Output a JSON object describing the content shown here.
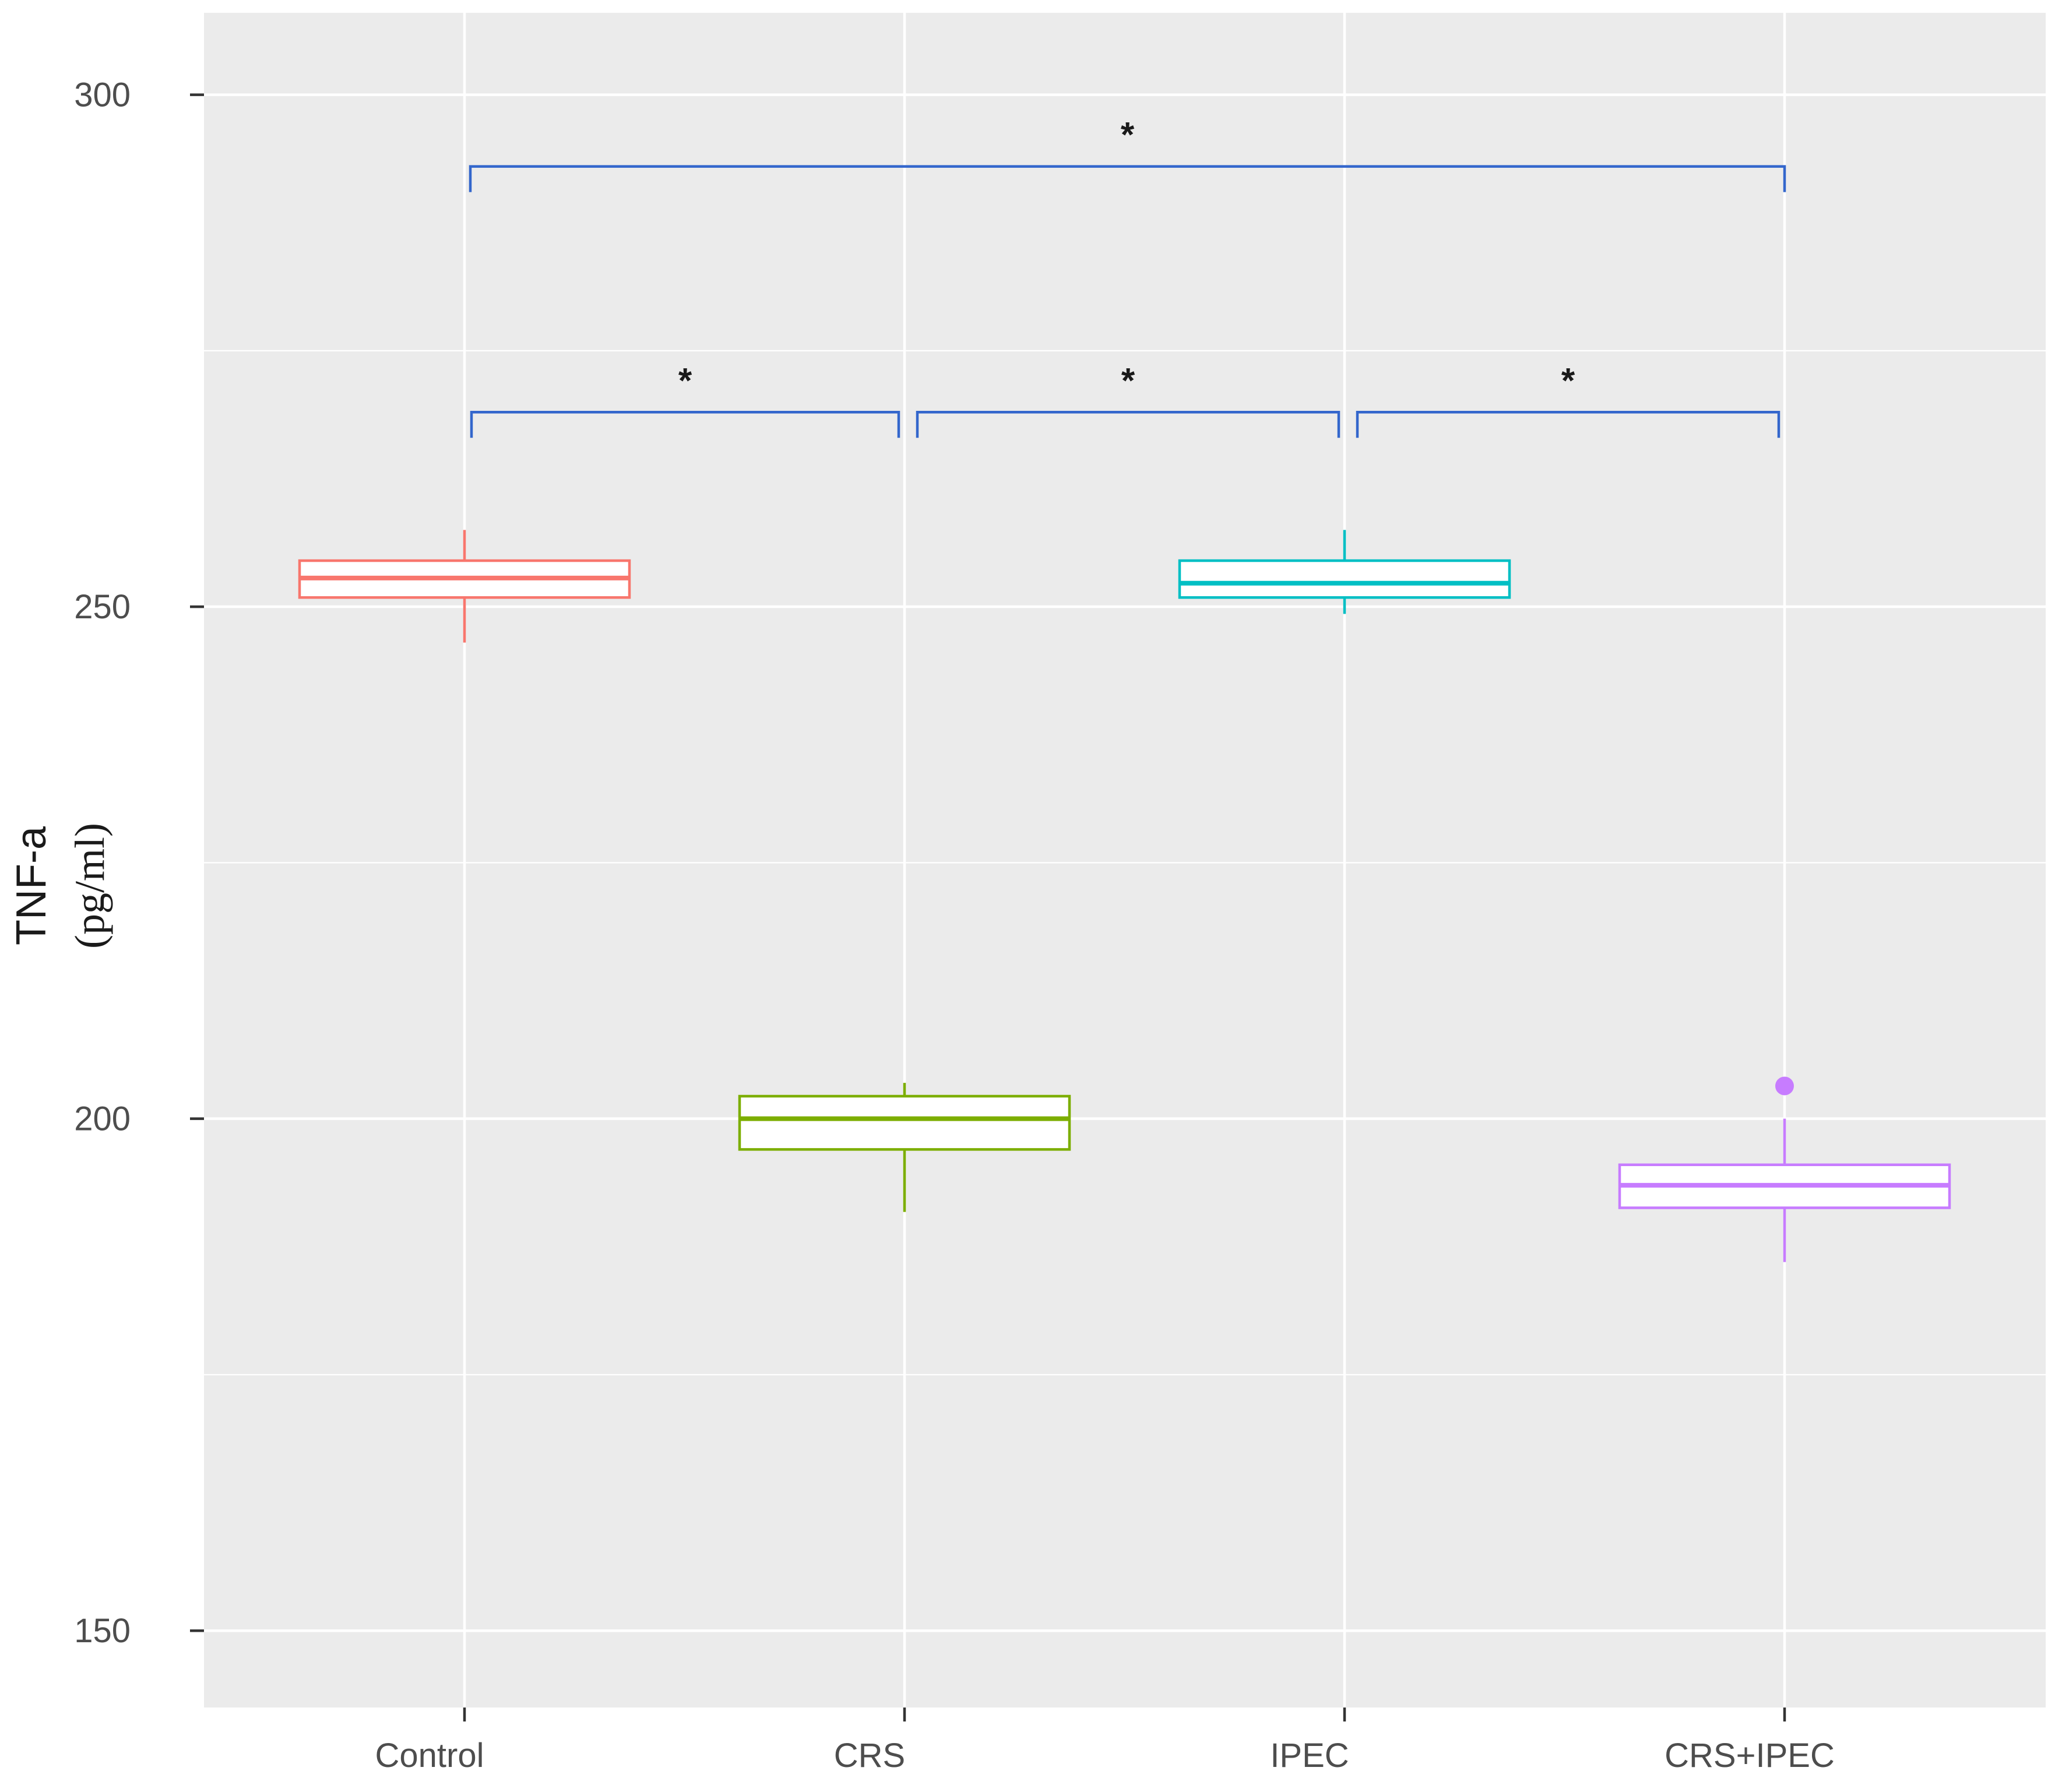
{
  "chart_data": {
    "type": "box",
    "ylabel": "TNF-a",
    "ylabel_unit": "(pg/ml)",
    "ylim": [
      142.5,
      308
    ],
    "y_ticks": [
      150,
      200,
      250,
      300
    ],
    "y_tick_labels": [
      "150",
      "200",
      "250",
      "300"
    ],
    "y_minor_ticks": [
      175,
      225,
      275
    ],
    "categories": [
      "Control",
      "CRS",
      "IPEC",
      "CRS+IPEC"
    ],
    "series": [
      {
        "category": "Control",
        "color": "#F8766D",
        "whisker_low": 246.5,
        "q1": 250.9,
        "median": 252.8,
        "q3": 254.5,
        "whisker_high": 257.5,
        "outliers": []
      },
      {
        "category": "CRS",
        "color": "#7CAE00",
        "whisker_low": 190.9,
        "q1": 197.0,
        "median": 200.0,
        "q3": 202.2,
        "whisker_high": 203.5,
        "outliers": []
      },
      {
        "category": "IPEC",
        "color": "#00BFC4",
        "whisker_low": 249.3,
        "q1": 250.9,
        "median": 252.3,
        "q3": 254.5,
        "whisker_high": 257.5,
        "outliers": []
      },
      {
        "category": "CRS+IPEC",
        "color": "#C77CFF",
        "whisker_low": 186.0,
        "q1": 191.3,
        "median": 193.5,
        "q3": 195.5,
        "whisker_high": 200.0,
        "outliers": [
          203.2
        ]
      }
    ],
    "comparisons": [
      {
        "from": "Control",
        "to": "CRS+IPEC",
        "label": "*",
        "y": 293
      },
      {
        "from": "Control",
        "to": "CRS",
        "label": "*",
        "y": 269
      },
      {
        "from": "CRS",
        "to": "IPEC",
        "label": "*",
        "y": 269
      },
      {
        "from": "IPEC",
        "to": "CRS+IPEC",
        "label": "*",
        "y": 269
      }
    ],
    "comparison_color": "#3366CC",
    "panel_background": "#EBEBEB",
    "grid": true,
    "grid_color": "#FFFFFF"
  }
}
